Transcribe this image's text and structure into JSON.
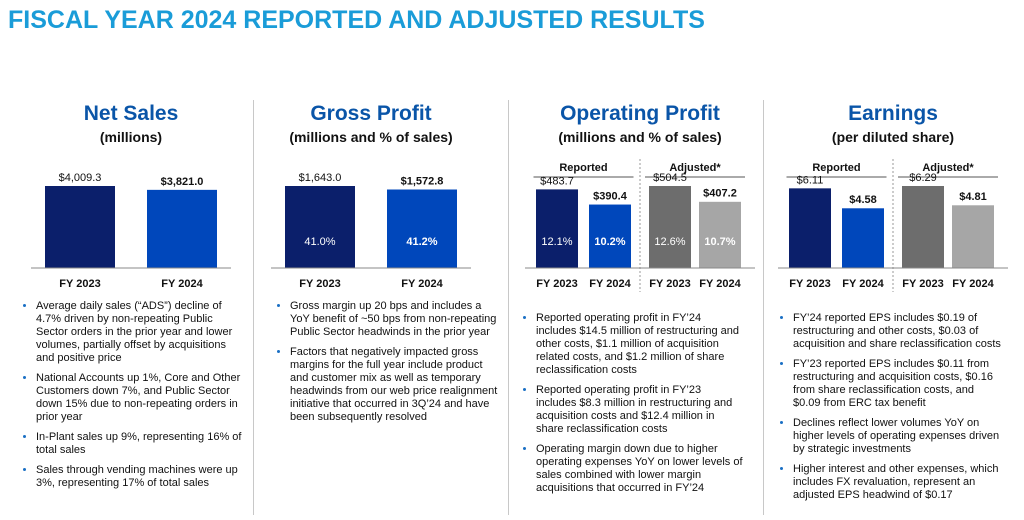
{
  "title": "FISCAL YEAR 2024 REPORTED AND ADJUSTED RESULTS",
  "chart_data": [
    {
      "type": "bar",
      "title": "Net Sales",
      "subtitle": "(millions)",
      "categories": [
        "FY 2023",
        "FY 2024"
      ],
      "series": [
        {
          "colors": [
            "#0b1f6b",
            "#0047bb"
          ],
          "values": [
            4009.3,
            3821.0
          ],
          "value_labels": [
            "$4,009.3",
            "$3,821.0"
          ]
        }
      ],
      "bullets": [
        "Average daily sales (“ADS”) decline of 4.7% driven by non-repeating Public Sector orders in the prior year and lower volumes, partially offset by acquisitions and positive price",
        "National Accounts up 1%, Core and Other Customers down 7%,  and Public Sector down 15% due to non-repeating orders in prior year",
        "In-Plant sales up 9%, representing 16% of total sales",
        "Sales through vending machines were up 3%, representing 17% of total sales"
      ]
    },
    {
      "type": "bar",
      "title": "Gross Profit",
      "subtitle": "(millions and % of sales)",
      "categories": [
        "FY 2023",
        "FY 2024"
      ],
      "series": [
        {
          "colors": [
            "#0b1f6b",
            "#0047bb"
          ],
          "values": [
            1643.0,
            1572.8
          ],
          "value_labels": [
            "$1,643.0",
            "$1,572.8"
          ],
          "margins": [
            41.0,
            41.2
          ],
          "margin_labels": [
            "41.0%",
            "41.2%"
          ]
        }
      ],
      "bullets": [
        "Gross margin up 20 bps and includes a YoY benefit of ~50 bps from non-repeating Public Sector headwinds in the prior year",
        "Factors that negatively impacted gross margins for the full year include product and customer mix as well as temporary headwinds from our web price realignment initiative that occurred in 3Q’24 and have been subsequently resolved"
      ]
    },
    {
      "type": "bar",
      "title": "Operating Profit",
      "subtitle": "(millions and % of sales)",
      "categories": [
        "FY 2023",
        "FY 2024"
      ],
      "series": [
        {
          "name": "Reported",
          "colors": [
            "#0b1f6b",
            "#0047bb"
          ],
          "values": [
            483.7,
            390.4
          ],
          "value_labels": [
            "$483.7",
            "$390.4"
          ],
          "margins": [
            12.1,
            10.2
          ],
          "margin_labels": [
            "12.1%",
            "10.2%"
          ]
        },
        {
          "name": "Adjusted*",
          "colors": [
            "#6d6d6d",
            "#a6a6a6"
          ],
          "values": [
            504.5,
            407.2
          ],
          "value_labels": [
            "$504.5",
            "$407.2"
          ],
          "margins": [
            12.6,
            10.7
          ],
          "margin_labels": [
            "12.6%",
            "10.7%"
          ]
        }
      ],
      "bullets": [
        "Reported operating profit in FY’24 includes $14.5 million of restructuring and other costs, $1.1 million of acquisition related costs, and $1.2 million of share reclassification costs",
        "Reported operating profit in FY’23 includes $8.3 million in restructuring and acquisition costs and $12.4 million in share reclassification costs",
        "Operating margin down due to higher operating expenses YoY on lower levels of sales combined with lower margin acquisitions that occurred in FY’24"
      ]
    },
    {
      "type": "bar",
      "title": "Earnings",
      "subtitle": "(per diluted share)",
      "categories": [
        "FY 2023",
        "FY 2024"
      ],
      "series": [
        {
          "name": "Reported",
          "colors": [
            "#0b1f6b",
            "#0047bb"
          ],
          "values": [
            6.11,
            4.58
          ],
          "value_labels": [
            "$6.11",
            "$4.58"
          ]
        },
        {
          "name": "Adjusted*",
          "colors": [
            "#6d6d6d",
            "#a6a6a6"
          ],
          "values": [
            6.29,
            4.81
          ],
          "value_labels": [
            "$6.29",
            "$4.81"
          ]
        }
      ],
      "bullets": [
        "FY’24 reported EPS includes $0.19 of restructuring and other costs, $0.03 of acquisition and share reclassification costs",
        "FY’23 reported EPS includes $0.11 from restructuring and acquisition costs, $0.16 from share reclassification costs, and $0.09 from ERC tax benefit",
        "Declines reflect lower volumes YoY on higher levels of operating expenses driven by strategic investments",
        "Higher interest and other expenses, which includes FX revaluation, represent an adjusted EPS headwind of $0.17"
      ]
    }
  ]
}
